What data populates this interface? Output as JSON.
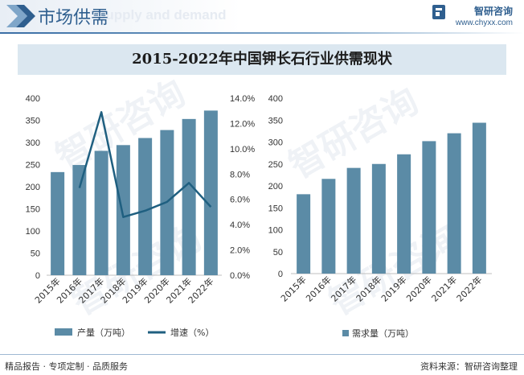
{
  "header": {
    "title": "市场供需",
    "ghost_text": "Supply and demand",
    "logo_name": "智研咨询",
    "logo_url": "www.chyxx.com"
  },
  "title": "2015-2022年中国钾长石行业供需现状",
  "footer": {
    "left": "精品报告 · 专项定制 · 品质服务",
    "right": "资料来源：智研咨询整理"
  },
  "watermark": "智研咨询",
  "colors": {
    "bar": "#5b8ba6",
    "line": "#1f5f80",
    "accent": "#2f5f8f"
  },
  "chart_data": [
    {
      "type": "bar",
      "categories": [
        "2015年",
        "2016年",
        "2017年",
        "2018年",
        "2019年",
        "2020年",
        "2021年",
        "2022年"
      ],
      "series": [
        {
          "name": "产量（万吨）",
          "type": "bar",
          "values": [
            233,
            249,
            281,
            294,
            310,
            328,
            353,
            372
          ]
        },
        {
          "name": "增速（%）",
          "type": "line",
          "axis": "right",
          "values": [
            null,
            6.9,
            12.9,
            4.6,
            5.1,
            5.8,
            7.3,
            5.4
          ]
        }
      ],
      "y_left": {
        "ticks": [
          "0",
          "50",
          "100",
          "150",
          "200",
          "250",
          "300",
          "350",
          "400"
        ],
        "range": [
          0,
          400
        ]
      },
      "y_right": {
        "ticks": [
          "0.0%",
          "2.0%",
          "4.0%",
          "6.0%",
          "8.0%",
          "10.0%",
          "12.0%",
          "14.0%"
        ],
        "range": [
          0,
          14
        ]
      },
      "legend": [
        "产量（万吨）",
        "增速（%）"
      ],
      "legend_position": "bottom"
    },
    {
      "type": "bar",
      "categories": [
        "2015年",
        "2016年",
        "2017年",
        "2018年",
        "2019年",
        "2020年",
        "2021年",
        "2022年"
      ],
      "series": [
        {
          "name": "需求量（万吨）",
          "values": [
            181,
            216,
            241,
            250,
            272,
            302,
            320,
            344
          ]
        }
      ],
      "y_left": {
        "ticks": [
          "0",
          "50",
          "100",
          "150",
          "200",
          "250",
          "300",
          "350",
          "400"
        ],
        "range": [
          0,
          400
        ]
      },
      "legend": [
        "需求量（万吨）"
      ],
      "legend_position": "bottom"
    }
  ]
}
